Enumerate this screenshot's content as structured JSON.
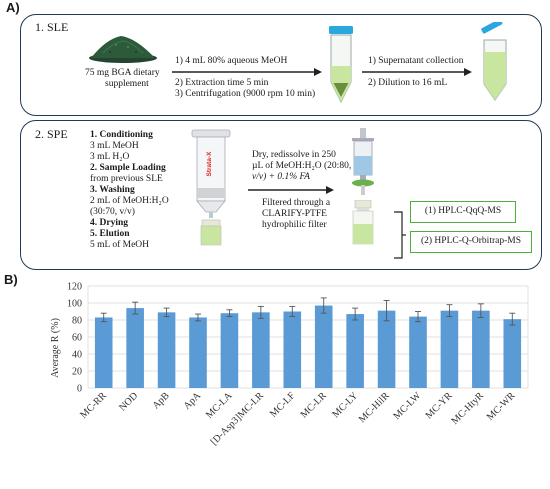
{
  "panel_a": {
    "label": "A)",
    "sle": {
      "title": "1. SLE",
      "sample_label_1": "75 mg BGA dietary",
      "sample_label_2": "supplement",
      "steps": [
        "1) 4 mL 80% aqueous MeOH",
        "2) Extraction time 5 min",
        "3) Centrifugation (9000 rpm 10 min)"
      ],
      "post_steps": [
        "1)  Supernatant collection",
        "2)  Dilution to 16 mL"
      ]
    },
    "spe": {
      "title": "2. SPE",
      "cartridge_label": "Strata-X",
      "conditioning": "1.   Conditioning",
      "cond_l1": "3 mL MeOH",
      "cond_l2": "3 mL H₂O",
      "loading": "2.   Sample Loading",
      "loading_l1": "from previous SLE",
      "washing": "3.   Washing",
      "washing_l1": "2  mL  of  MeOH:H₂O",
      "washing_l2": "(30:70, v/v)",
      "drying": "4.   Drying",
      "elution": "5.   Elution",
      "elution_l1": "5 mL of MeOH",
      "redissolve_l1": "Dry, redissolve in 250",
      "redissolve_l2": "µL of MeOH:H₂O (20:80,",
      "redissolve_l3": "v/v) + 0.1% FA",
      "filter_l1": "Filtered through a",
      "filter_l2": "CLARIFY-PTFE",
      "filter_l3": "hydrophilic filter",
      "analysis_1": "(1) HPLC-QqQ-MS",
      "analysis_2": "(2) HPLC-Q-Orbitrap-MS"
    }
  },
  "panel_b": {
    "label": "B)"
  },
  "colors": {
    "box_border": "#1f3b57",
    "bar_fill": "#5b9bd5",
    "green": "#4caf3a",
    "powder": "#2e5a3c",
    "liquid": "#c8e6a0"
  },
  "chart_data": {
    "type": "bar",
    "categories": [
      "MC-RR",
      "NOD",
      "ApB",
      "ApA",
      "MC-LA",
      "[D-Asp3]MC-LR",
      "MC-LF",
      "MC-LR",
      "MC-LY",
      "MC-HilR",
      "MC-LW",
      "MC-YR",
      "MC-HtyR",
      "MC-WR"
    ],
    "values": [
      83,
      94,
      89,
      83,
      88,
      89,
      90,
      97,
      87,
      91,
      84,
      91,
      91,
      81
    ],
    "errors": [
      5,
      7,
      5,
      4,
      4,
      7,
      6,
      9,
      7,
      12,
      6,
      7,
      8,
      7
    ],
    "ylabel": "Average R (%)",
    "yticks": [
      0,
      20,
      40,
      60,
      80,
      100,
      120
    ],
    "ylim": [
      0,
      120
    ],
    "grid": true
  }
}
